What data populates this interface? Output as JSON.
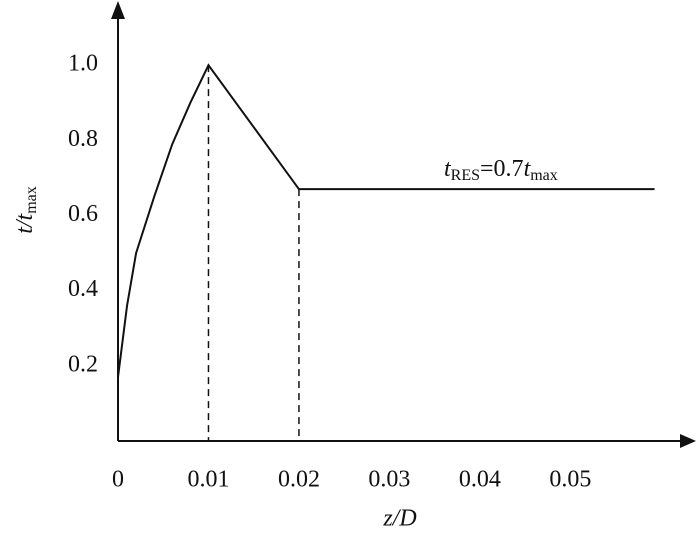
{
  "chart_data": {
    "type": "line",
    "x_label": "z/D",
    "y_label": [
      "t/t",
      "max"
    ],
    "annotation": [
      "t",
      "RES",
      "=0.7",
      "t",
      "max"
    ],
    "xlim": [
      0,
      0.063
    ],
    "ylim": [
      0,
      1.16
    ],
    "xticks": [
      0,
      0.01,
      0.02,
      0.03,
      0.04,
      0.05
    ],
    "yticks": [
      0.2,
      0.4,
      0.6,
      0.8,
      {
        "value": 1,
        "label": "1.0"
      }
    ],
    "color": "#111111",
    "series": [
      {
        "x": [
          0,
          0,
          0.001,
          0.002,
          0.004,
          0.006,
          0.008,
          0.01,
          0.02,
          0.0593
        ],
        "values": [
          0,
          0.17,
          0.36,
          0.5,
          0.65,
          0.79,
          0.9,
          1.0,
          0.67,
          0.67
        ]
      }
    ],
    "dashed_at": [
      7,
      8
    ]
  }
}
